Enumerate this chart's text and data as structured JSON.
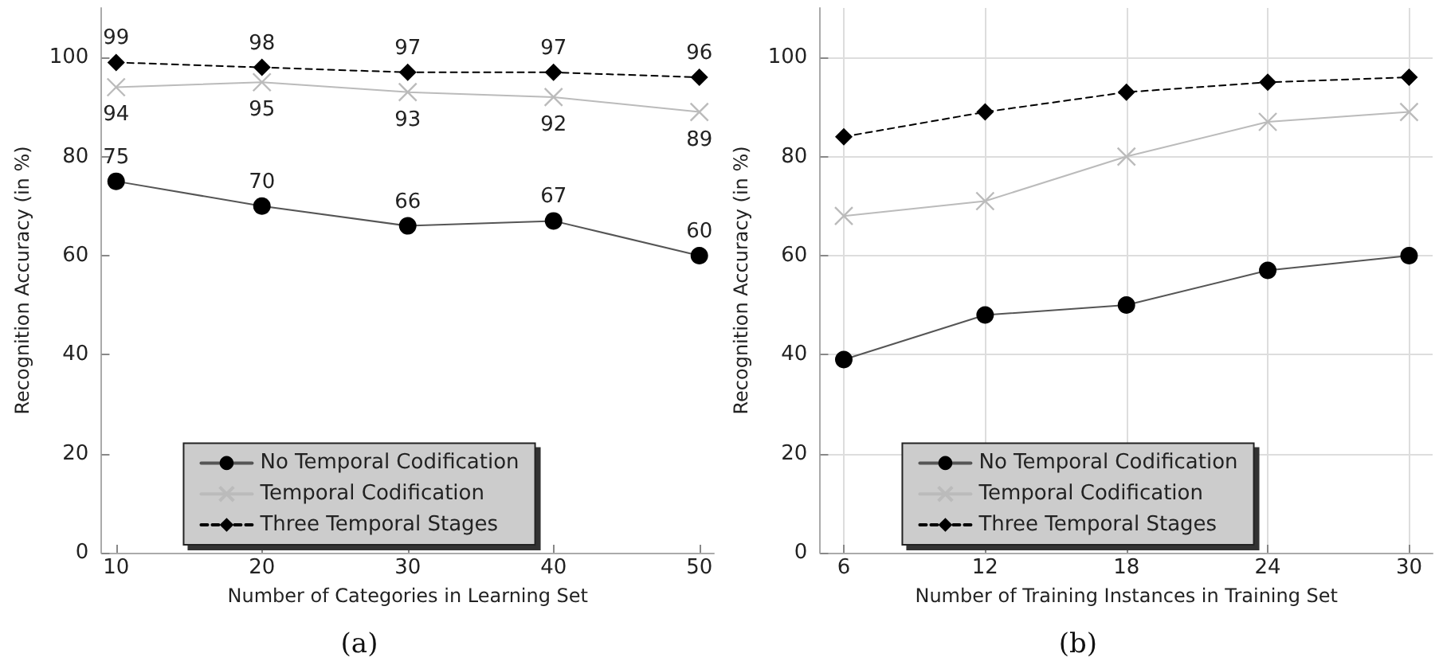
{
  "chart_data": [
    {
      "type": "line",
      "x": [
        10,
        20,
        30,
        40,
        50
      ],
      "xlabel": "Number of Categories in Learning Set",
      "ylabel": "Recognition Accuracy (in %)",
      "xlim": [
        9,
        51
      ],
      "xticks": [
        10,
        20,
        30,
        40,
        50
      ],
      "ylim": [
        0,
        110
      ],
      "yticks": [
        0,
        20,
        40,
        60,
        80,
        100
      ],
      "grid": false,
      "legend": "bottom",
      "data_labels": true,
      "annotations": [
        "(a)"
      ],
      "series": [
        {
          "name": "No Temporal Codification",
          "color": "#000000",
          "marker": "circle",
          "line_style": "solid",
          "values": [
            75,
            70,
            66,
            67,
            60
          ]
        },
        {
          "name": "Temporal Codification",
          "color": "#bbbbbb",
          "marker": "cross",
          "line_style": "solid",
          "values": [
            94,
            95,
            93,
            92,
            89
          ]
        },
        {
          "name": "Three Temporal Stages",
          "color": "#000000",
          "marker": "diamond",
          "line_style": "dashed",
          "values": [
            99,
            98,
            97,
            97,
            96
          ]
        }
      ]
    },
    {
      "type": "line",
      "x": [
        6,
        12,
        18,
        24,
        30
      ],
      "xlabel": "Number of Training Instances in Training Set",
      "ylabel": "Recognition Accuracy (in %)",
      "xlim": [
        5,
        31
      ],
      "xticks": [
        6,
        12,
        18,
        24,
        30
      ],
      "ylim": [
        0,
        110
      ],
      "yticks": [
        0,
        20,
        40,
        60,
        80,
        100
      ],
      "grid": true,
      "legend": "bottom",
      "annotations": [
        "(b)"
      ],
      "series": [
        {
          "name": "No Temporal Codification",
          "color": "#000000",
          "marker": "circle",
          "line_style": "solid",
          "values": [
            39,
            48,
            50,
            57,
            60
          ]
        },
        {
          "name": "Temporal Codification",
          "color": "#bbbbbb",
          "marker": "cross",
          "line_style": "solid",
          "values": [
            68,
            71,
            80,
            87,
            89
          ]
        },
        {
          "name": "Three Temporal Stages",
          "color": "#000000",
          "marker": "diamond",
          "line_style": "dashed",
          "values": [
            84,
            89,
            93,
            95,
            96
          ]
        }
      ]
    }
  ]
}
